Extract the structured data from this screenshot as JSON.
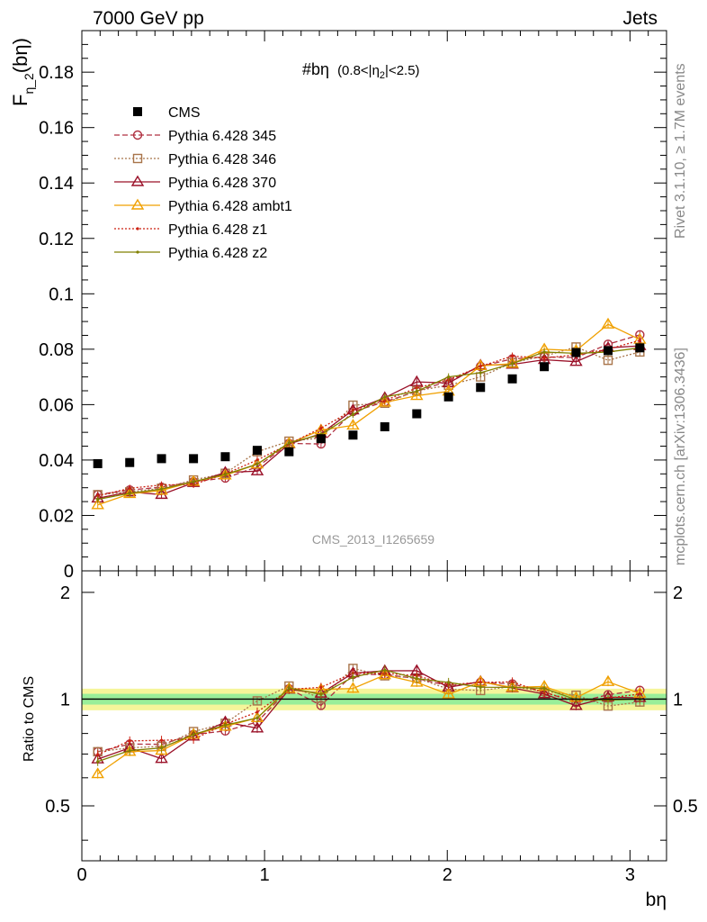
{
  "header": {
    "left": "7000 GeV pp",
    "right": "Jets"
  },
  "side_labels": {
    "rivet": "Rivet 3.1.10, ≥ 1.7M events",
    "mcplots": "mcplots.cern.ch [arXiv:1306.3436]"
  },
  "chart_data": {
    "type": "line",
    "title_main": "#bη",
    "title_sub": "(0.8<|η",
    "title_sub_index": "2",
    "title_sub_tail": "|<2.5)",
    "analysis_id": "CMS_2013_I1265659",
    "ylabel_main": "F",
    "ylabel_sub": "η_2",
    "ylabel_tail": "(bη)",
    "xlabel": "bη",
    "ratio_ylabel": "Ratio to CMS",
    "xlim": [
      0,
      3.2
    ],
    "ylim": [
      0,
      0.195
    ],
    "ratio_ylim": [
      0.35,
      2.3
    ],
    "ratio_log": true,
    "x_ticks": [
      "0",
      "1",
      "2",
      "3"
    ],
    "y_ticks": [
      "0",
      "0.02",
      "0.04",
      "0.06",
      "0.08",
      "0.1",
      "0.12",
      "0.14",
      "0.16",
      "0.18"
    ],
    "ratio_ticks": [
      "0.5",
      "1",
      "2"
    ],
    "x": [
      0.087,
      0.262,
      0.436,
      0.611,
      0.785,
      0.96,
      1.134,
      1.309,
      1.484,
      1.658,
      1.833,
      2.007,
      2.182,
      2.356,
      2.531,
      2.705,
      2.88,
      3.054
    ],
    "data": {
      "name": "CMS",
      "values": [
        0.0387,
        0.0391,
        0.0405,
        0.0405,
        0.0412,
        0.0435,
        0.043,
        0.0477,
        0.049,
        0.052,
        0.0567,
        0.0628,
        0.0662,
        0.0693,
        0.0737,
        0.0788,
        0.0795,
        0.0805
      ],
      "band_stat": 0.035,
      "band_total": 0.07,
      "color": "#000000"
    },
    "series": [
      {
        "name": "Pythia 6.428 345",
        "marker": "circle",
        "dash": "dashed",
        "color": "#b03040",
        "values": [
          0.0275,
          0.0292,
          0.0302,
          0.0322,
          0.0335,
          0.0375,
          0.046,
          0.0458,
          0.0575,
          0.061,
          0.0648,
          0.0685,
          0.0738,
          0.0765,
          0.0772,
          0.077,
          0.0818,
          0.0852
        ]
      },
      {
        "name": "Pythia 6.428 346",
        "marker": "square",
        "dash": "dotted",
        "color": "#a8744a",
        "values": [
          0.0275,
          0.0285,
          0.0298,
          0.0328,
          0.0352,
          0.043,
          0.0468,
          0.048,
          0.0598,
          0.0605,
          0.065,
          0.067,
          0.07,
          0.0752,
          0.0775,
          0.0808,
          0.076,
          0.079
        ]
      },
      {
        "name": "Pythia 6.428 370",
        "marker": "triangle",
        "dash": "solid",
        "color": "#9a1028",
        "values": [
          0.0262,
          0.0285,
          0.0275,
          0.0318,
          0.0355,
          0.036,
          0.0458,
          0.0495,
          0.058,
          0.0625,
          0.0682,
          0.0678,
          0.0742,
          0.0745,
          0.0762,
          0.0755,
          0.0805,
          0.0812
        ]
      },
      {
        "name": "Pythia 6.428 ambt1",
        "marker": "triangle",
        "dash": "solid",
        "color": "#f0a000",
        "values": [
          0.0238,
          0.0278,
          0.029,
          0.0322,
          0.0345,
          0.0385,
          0.046,
          0.0508,
          0.0525,
          0.0608,
          0.0632,
          0.0648,
          0.074,
          0.0748,
          0.08,
          0.0795,
          0.089,
          0.0835
        ]
      },
      {
        "name": "Pythia 6.428 z1",
        "marker": "dot",
        "dash": "dotted",
        "color": "#cc2010",
        "values": [
          0.027,
          0.0298,
          0.031,
          0.0312,
          0.035,
          0.04,
          0.0458,
          0.0515,
          0.058,
          0.0615,
          0.066,
          0.069,
          0.0738,
          0.0775,
          0.0768,
          0.078,
          0.08,
          0.0832
        ]
      },
      {
        "name": "Pythia 6.428 z2",
        "marker": "dot",
        "dash": "solid",
        "color": "#808000",
        "values": [
          0.0258,
          0.028,
          0.0295,
          0.0322,
          0.0348,
          0.0385,
          0.0462,
          0.0492,
          0.0565,
          0.0628,
          0.0648,
          0.07,
          0.0715,
          0.0748,
          0.079,
          0.0785,
          0.079,
          0.0805
        ]
      }
    ]
  }
}
